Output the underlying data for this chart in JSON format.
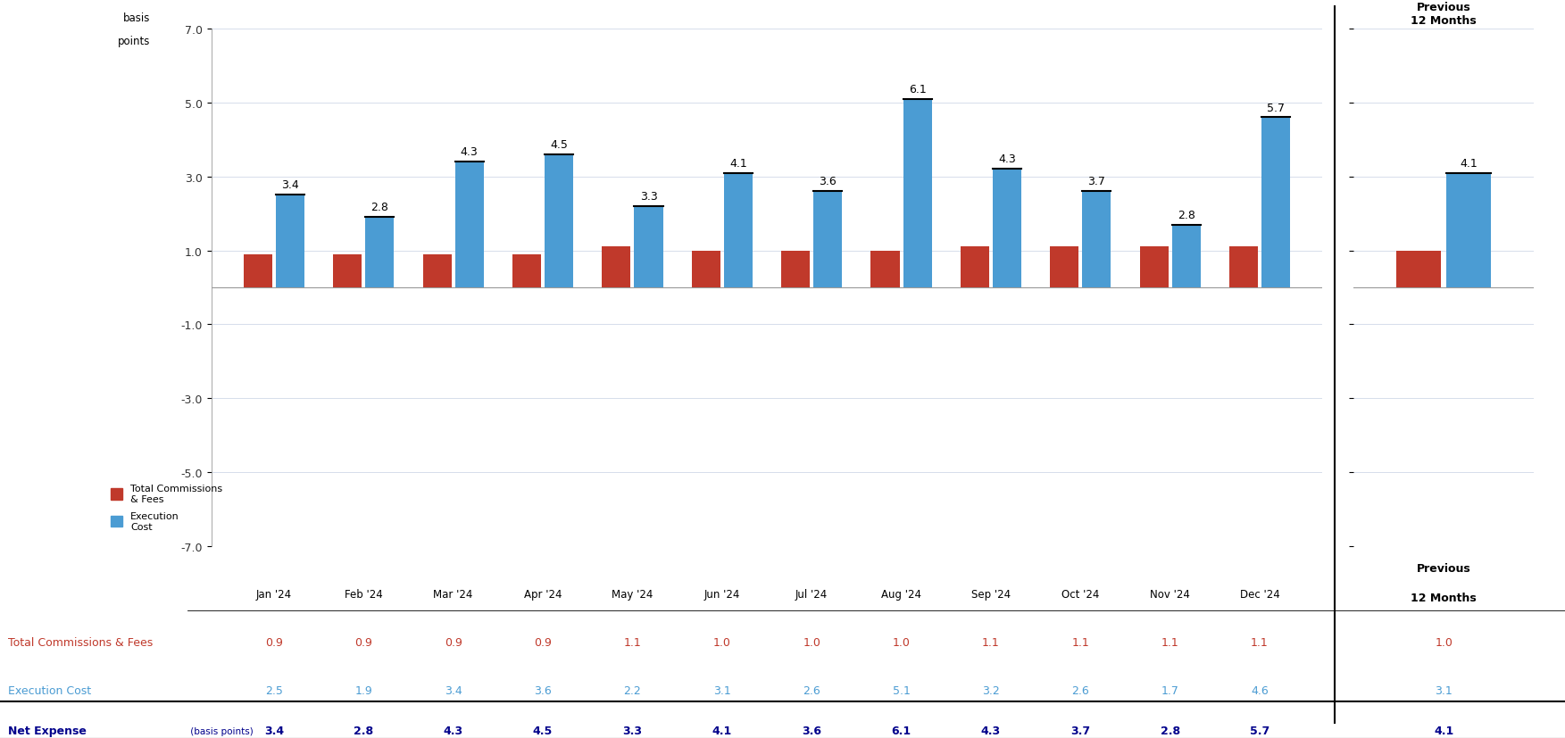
{
  "months": [
    "Jan '24",
    "Feb '24",
    "Mar '24",
    "Apr '24",
    "May '24",
    "Jun '24",
    "Jul '24",
    "Aug '24",
    "Sep '24",
    "Oct '24",
    "Nov '24",
    "Dec '24"
  ],
  "total_commissions": [
    0.9,
    0.9,
    0.9,
    0.9,
    1.1,
    1.0,
    1.0,
    1.0,
    1.1,
    1.1,
    1.1,
    1.1
  ],
  "execution_cost": [
    2.5,
    1.9,
    3.4,
    3.6,
    2.2,
    3.1,
    2.6,
    5.1,
    3.2,
    2.6,
    1.7,
    4.6
  ],
  "net_expense": [
    3.4,
    2.8,
    4.3,
    4.5,
    3.3,
    4.1,
    3.6,
    6.1,
    4.3,
    3.7,
    2.8,
    5.7
  ],
  "prev_12_commissions": 1.0,
  "prev_12_execution": 3.1,
  "prev_12_net": 4.1,
  "bar_color_red": "#C0392B",
  "bar_color_blue": "#4B9CD3",
  "ylim": [
    -7.0,
    7.0
  ],
  "yticks": [
    -7.0,
    -5.0,
    -3.0,
    -1.0,
    1.0,
    3.0,
    5.0,
    7.0
  ],
  "ytick_labels": [
    "-7.0",
    "-5.0",
    "-3.0",
    "-1.0",
    "1.0",
    "3.0",
    "5.0",
    "7.0"
  ],
  "ylabel_line1": "basis",
  "ylabel_line2": "points",
  "legend_red": "Total Commissions\n& Fees",
  "legend_blue": "Execution\nCost",
  "row_label_commissions": "Total Commissions & Fees",
  "row_label_execution": "Execution Cost",
  "row_label_net_bold": "Net Expense",
  "row_label_net_normal": " (basis points)",
  "prev_col_label_line1": "Previous",
  "prev_col_label_line2": "12 Months",
  "table_red_color": "#C0392B",
  "table_blue_color": "#4B9CD3",
  "table_net_color": "#00008B",
  "table_black_color": "#000000",
  "background_color": "#FFFFFF",
  "grid_color": "#D0D8E8",
  "spine_color": "#999999"
}
